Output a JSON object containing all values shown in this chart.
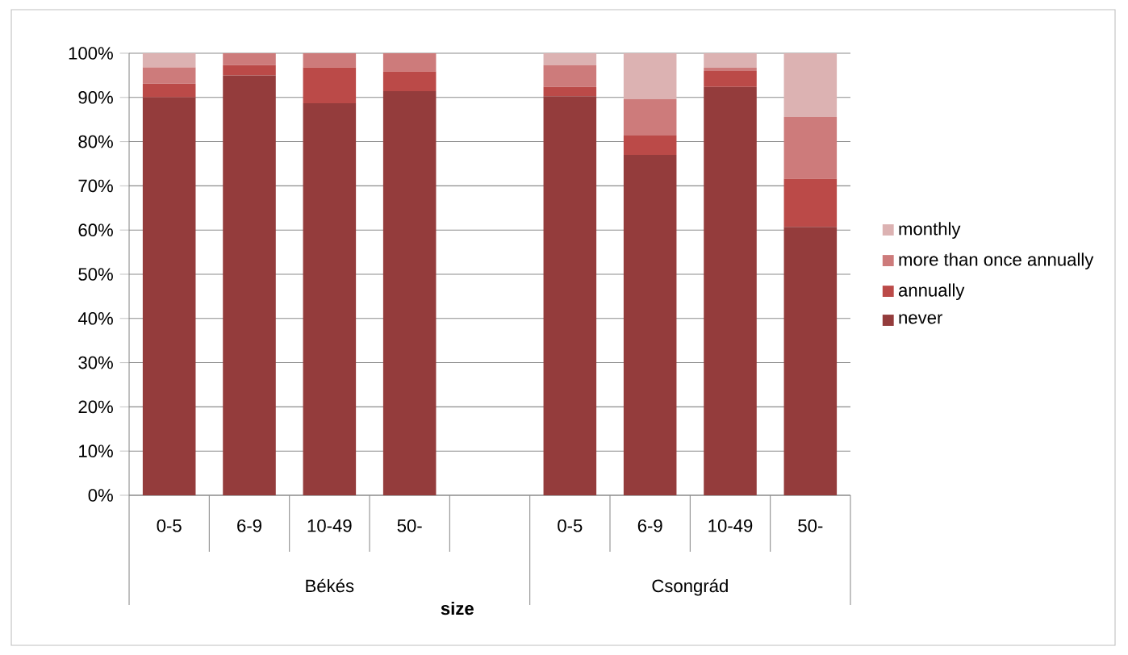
{
  "chart_data": {
    "type": "bar",
    "stacked": true,
    "xlabel": "size",
    "categories": [
      "0-5",
      "6-9",
      "10-49",
      "50-",
      null,
      "0-5",
      "6-9",
      "10-49",
      "50-"
    ],
    "series": [
      {
        "name": "never",
        "color": "#943c3c",
        "values": [
          90,
          95,
          88.7,
          91.4,
          null,
          90.3,
          77,
          92.4,
          60.7
        ]
      },
      {
        "name": "annually",
        "color": "#bb4a48",
        "values": [
          3.1,
          2.3,
          8.1,
          4.5,
          null,
          2.1,
          4.4,
          3.6,
          10.9
        ]
      },
      {
        "name": "more than once annually",
        "color": "#cd7b7b",
        "values": [
          3.7,
          2.7,
          3.2,
          4.1,
          null,
          4.9,
          8.2,
          0.7,
          14
        ]
      },
      {
        "name": "monthly",
        "color": "#dcb2b2",
        "values": [
          3.2,
          0,
          0,
          0,
          null,
          2.7,
          10.4,
          3.3,
          14.4
        ]
      }
    ],
    "ylim": [
      0,
      100
    ],
    "yticks": [
      {
        "value": 0,
        "label": "0%"
      },
      {
        "value": 10,
        "label": "10%"
      },
      {
        "value": 20,
        "label": "20%"
      },
      {
        "value": 30,
        "label": "30%"
      },
      {
        "value": 40,
        "label": "40%"
      },
      {
        "value": 50,
        "label": "50%"
      },
      {
        "value": 60,
        "label": "60%"
      },
      {
        "value": 70,
        "label": "70%"
      },
      {
        "value": 80,
        "label": "80%"
      },
      {
        "value": 90,
        "label": "90%"
      },
      {
        "value": 100,
        "label": "100%"
      }
    ],
    "annotations": [
      "Békés",
      "Csongrád"
    ],
    "grid": "y",
    "legend": "right"
  }
}
